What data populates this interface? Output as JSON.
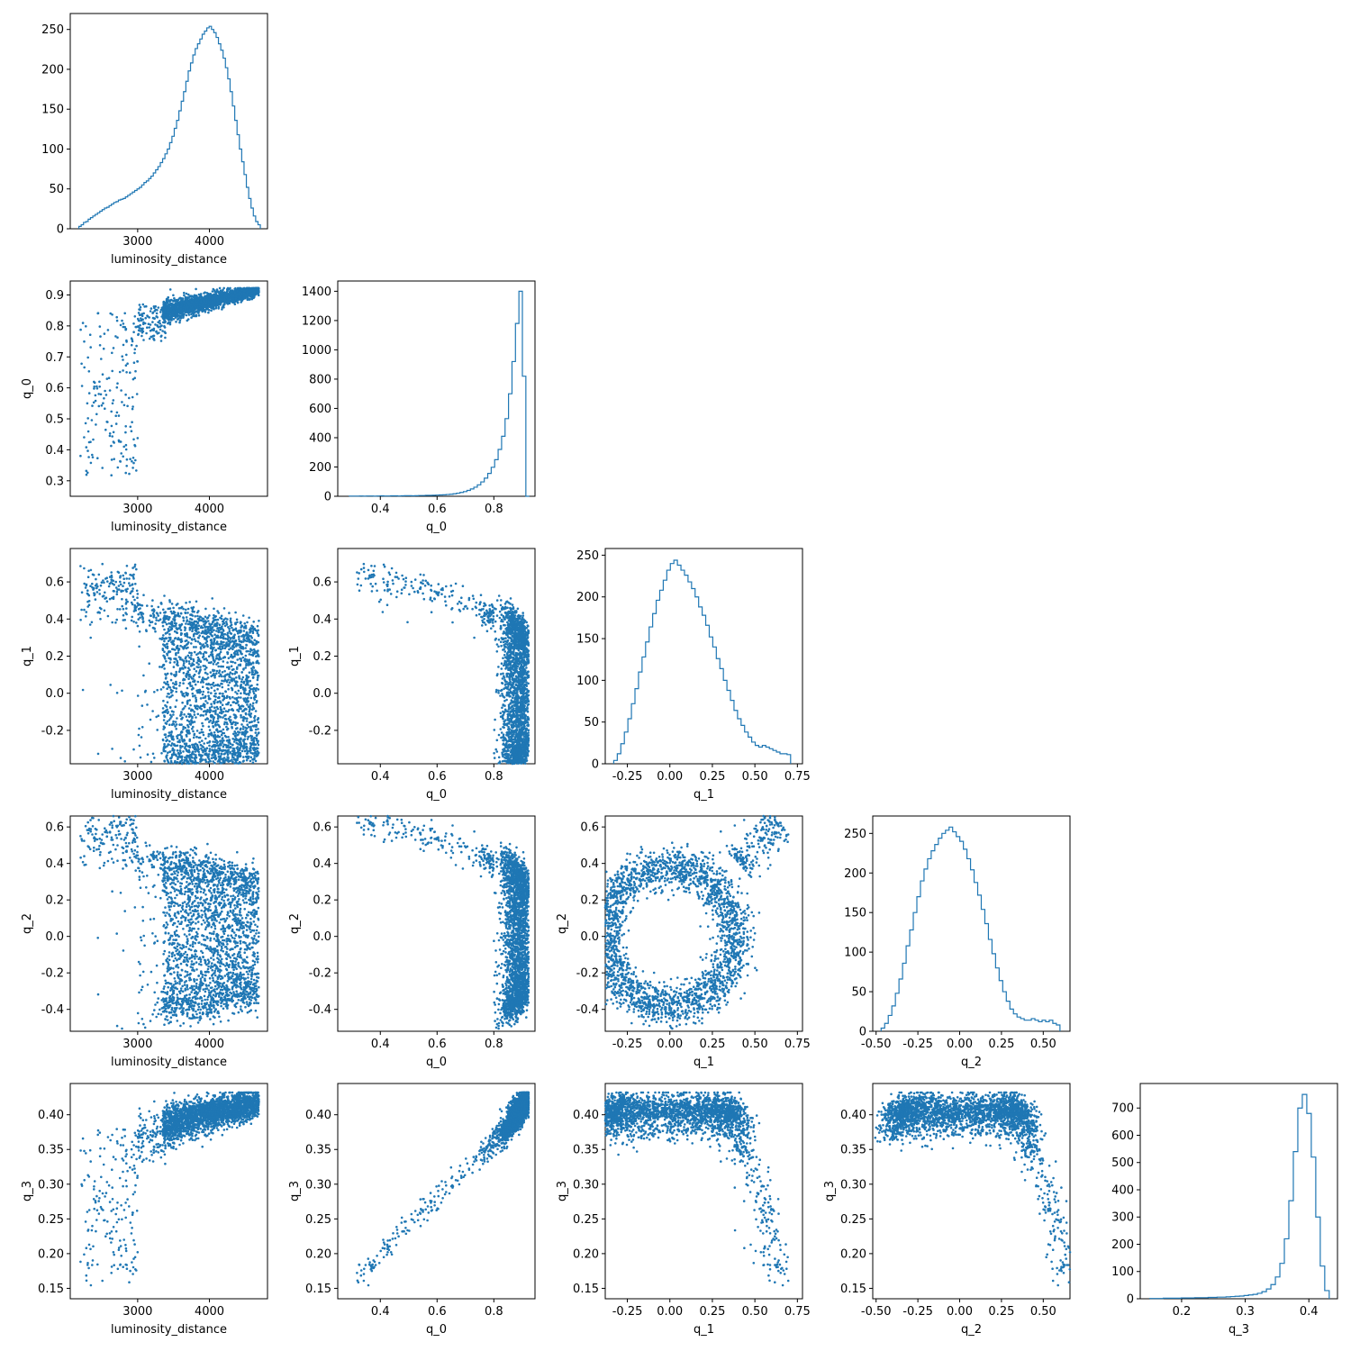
{
  "chart_data": {
    "type": "corner",
    "series_color": "#1f77b4",
    "parameters": [
      "luminosity_distance",
      "q_0",
      "q_1",
      "q_2",
      "q_3"
    ],
    "axes": {
      "luminosity_distance": {
        "label": "luminosity_distance",
        "lim": [
          2060,
          4810
        ],
        "ticks": [
          3000,
          4000
        ],
        "tick_labels": [
          "3000",
          "4000"
        ]
      },
      "q_0": {
        "label": "q_0",
        "lim": [
          0.25,
          0.945
        ],
        "ticks": [
          0.4,
          0.6,
          0.8
        ],
        "tick_labels": [
          "0.4",
          "0.6",
          "0.8"
        ],
        "y_ticks": [
          0.3,
          0.4,
          0.5,
          0.6,
          0.7,
          0.8,
          0.9
        ],
        "y_tick_labels": [
          "0.3",
          "0.4",
          "0.5",
          "0.6",
          "0.7",
          "0.8",
          "0.9"
        ]
      },
      "q_1": {
        "label": "q_1",
        "lim": [
          -0.38,
          0.78
        ],
        "ticks": [
          -0.25,
          0.0,
          0.25,
          0.5,
          0.75
        ],
        "tick_labels": [
          "-0.25",
          "0.00",
          "0.25",
          "0.50",
          "0.75"
        ],
        "y_ticks": [
          -0.2,
          0.0,
          0.2,
          0.4,
          0.6
        ],
        "y_tick_labels": [
          "-0.2",
          "0.0",
          "0.2",
          "0.4",
          "0.6"
        ]
      },
      "q_2": {
        "label": "q_2",
        "lim": [
          -0.52,
          0.66
        ],
        "ticks": [
          -0.5,
          -0.25,
          0.0,
          0.25,
          0.5
        ],
        "tick_labels": [
          "-0.50",
          "-0.25",
          "0.00",
          "0.25",
          "0.50"
        ],
        "y_ticks": [
          -0.4,
          -0.2,
          0.0,
          0.2,
          0.4,
          0.6
        ],
        "y_tick_labels": [
          "-0.4",
          "-0.2",
          "0.0",
          "0.2",
          "0.4",
          "0.6"
        ]
      },
      "q_3": {
        "label": "q_3",
        "lim": [
          0.135,
          0.445
        ],
        "ticks": [
          0.2,
          0.3,
          0.4
        ],
        "tick_labels": [
          "0.2",
          "0.3",
          "0.4"
        ],
        "y_ticks": [
          0.15,
          0.2,
          0.25,
          0.3,
          0.35,
          0.4
        ],
        "y_tick_labels": [
          "0.15",
          "0.20",
          "0.25",
          "0.30",
          "0.35",
          "0.40"
        ]
      }
    },
    "histograms": [
      {
        "param": "luminosity_distance",
        "ylim": [
          0,
          270
        ],
        "y_ticks": [
          0,
          50,
          100,
          150,
          200,
          250
        ],
        "y_tick_labels": [
          "0",
          "50",
          "100",
          "150",
          "200",
          "250"
        ],
        "range": [
          2180,
          4710
        ],
        "counts": [
          3,
          5,
          8,
          9,
          12,
          14,
          16,
          18,
          20,
          22,
          24,
          26,
          27,
          29,
          31,
          33,
          34,
          36,
          37,
          38,
          40,
          42,
          44,
          46,
          48,
          50,
          52,
          55,
          58,
          60,
          63,
          66,
          70,
          74,
          78,
          83,
          88,
          94,
          100,
          108,
          116,
          126,
          136,
          148,
          160,
          172,
          185,
          198,
          208,
          218,
          226,
          232,
          238,
          244,
          248,
          252,
          254,
          250,
          246,
          240,
          232,
          224,
          214,
          202,
          188,
          172,
          154,
          136,
          118,
          100,
          84,
          68,
          52,
          38,
          26,
          16,
          9,
          5
        ]
      },
      {
        "param": "q_0",
        "ylim": [
          0,
          1470
        ],
        "y_ticks": [
          0,
          200,
          400,
          600,
          800,
          1000,
          1200,
          1400
        ],
        "y_tick_labels": [
          "0",
          "200",
          "400",
          "600",
          "800",
          "1000",
          "1200",
          "1400"
        ],
        "range": [
          0.29,
          0.925
        ],
        "counts": [
          1,
          1,
          1,
          2,
          1,
          2,
          2,
          1,
          2,
          3,
          2,
          2,
          3,
          3,
          2,
          3,
          4,
          4,
          3,
          4,
          5,
          5,
          6,
          6,
          7,
          8,
          9,
          10,
          12,
          14,
          17,
          21,
          26,
          32,
          40,
          50,
          62,
          78,
          98,
          124,
          156,
          198,
          250,
          320,
          410,
          530,
          700,
          920,
          1180,
          1400,
          820,
          0
        ]
      },
      {
        "param": "q_1",
        "ylim": [
          0,
          258
        ],
        "y_ticks": [
          0,
          50,
          100,
          150,
          200,
          250
        ],
        "y_tick_labels": [
          "0",
          "50",
          "100",
          "150",
          "200",
          "250"
        ],
        "range": [
          -0.33,
          0.71
        ],
        "counts": [
          4,
          12,
          24,
          38,
          54,
          72,
          90,
          110,
          128,
          146,
          164,
          180,
          196,
          208,
          220,
          232,
          240,
          244,
          238,
          232,
          226,
          218,
          210,
          200,
          188,
          178,
          166,
          152,
          140,
          126,
          114,
          100,
          88,
          76,
          64,
          54,
          46,
          38,
          32,
          26,
          22,
          20,
          22,
          20,
          18,
          16,
          14,
          12,
          12,
          11
        ]
      },
      {
        "param": "q_2",
        "ylim": [
          0,
          272
        ],
        "y_ticks": [
          0,
          50,
          100,
          150,
          200,
          250
        ],
        "y_tick_labels": [
          "0",
          "50",
          "100",
          "150",
          "200",
          "250"
        ],
        "range": [
          -0.47,
          0.6
        ],
        "counts": [
          4,
          10,
          20,
          32,
          48,
          66,
          86,
          108,
          128,
          150,
          170,
          190,
          205,
          218,
          228,
          236,
          244,
          250,
          254,
          258,
          252,
          246,
          240,
          230,
          218,
          204,
          188,
          172,
          154,
          136,
          116,
          98,
          80,
          64,
          50,
          38,
          28,
          22,
          18,
          16,
          14,
          14,
          16,
          14,
          12,
          14,
          12,
          14,
          10,
          8
        ]
      },
      {
        "param": "q_3",
        "ylim": [
          0,
          790
        ],
        "y_ticks": [
          0,
          100,
          200,
          300,
          400,
          500,
          600,
          700
        ],
        "y_tick_labels": [
          "0",
          "100",
          "200",
          "300",
          "400",
          "500",
          "600",
          "700"
        ],
        "range": [
          0.15,
          0.432
        ],
        "counts": [
          1,
          1,
          1,
          2,
          2,
          2,
          2,
          3,
          3,
          3,
          4,
          4,
          4,
          5,
          5,
          6,
          6,
          7,
          8,
          9,
          10,
          12,
          14,
          16,
          20,
          26,
          36,
          52,
          80,
          130,
          220,
          360,
          540,
          700,
          750,
          680,
          520,
          300,
          120,
          30
        ]
      }
    ]
  }
}
